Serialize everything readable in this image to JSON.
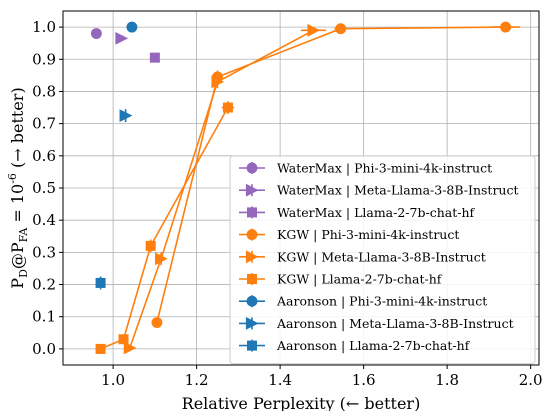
{
  "chart_data": {
    "type": "scatter",
    "xlabel": "Relative Perplexity (← better)",
    "ylabel": "P_D@P_FA = 10^{-6} (→ better)",
    "xlim": [
      0.88,
      2.02
    ],
    "ylim": [
      -0.05,
      1.05
    ],
    "x_ticks": [
      "1.0",
      "1.2",
      "1.4",
      "1.6",
      "1.8",
      "2.0"
    ],
    "y_ticks": [
      "0.0",
      "0.1",
      "0.2",
      "0.3",
      "0.4",
      "0.5",
      "0.6",
      "0.7",
      "0.8",
      "0.9",
      "1.0"
    ],
    "grid": true,
    "legend_position": "lower-right",
    "colors": {
      "WaterMax": "#9467bd",
      "KGW": "#ff7f0e",
      "Aaronson": "#1f77b4"
    },
    "series": [
      {
        "name": "WaterMax | Phi-3-mini-4k-instruct",
        "marker": "circle",
        "color": "#9467bd",
        "connected": false,
        "points": [
          {
            "x": 0.96,
            "y": 0.98,
            "xerr": 0.006,
            "yerr": 0.003
          }
        ]
      },
      {
        "name": "WaterMax | Meta-Llama-3-8B-Instruct",
        "marker": "triangle-right",
        "color": "#9467bd",
        "connected": false,
        "points": [
          {
            "x": 1.02,
            "y": 0.965,
            "xerr": 0.004,
            "yerr": 0.003
          }
        ]
      },
      {
        "name": "WaterMax | Llama-2-7b-chat-hf",
        "marker": "square",
        "color": "#9467bd",
        "connected": false,
        "points": [
          {
            "x": 1.1,
            "y": 0.905,
            "xerr": 0.004,
            "yerr": 0.01
          }
        ]
      },
      {
        "name": "KGW | Phi-3-mini-4k-instruct",
        "marker": "circle",
        "color": "#ff7f0e",
        "connected": true,
        "points": [
          {
            "x": 1.105,
            "y": 0.082,
            "xerr": 0.008,
            "yerr": 0.005
          },
          {
            "x": 1.25,
            "y": 0.845,
            "xerr": 0.01,
            "yerr": 0.02
          },
          {
            "x": 1.545,
            "y": 0.995,
            "xerr": 0.015,
            "yerr": 0.004
          },
          {
            "x": 1.94,
            "y": 1.0,
            "xerr": 0.035,
            "yerr": 0.002
          }
        ]
      },
      {
        "name": "KGW | Meta-Llama-3-8B-Instruct",
        "marker": "triangle-right",
        "color": "#ff7f0e",
        "connected": true,
        "points": [
          {
            "x": 1.04,
            "y": 0.003,
            "xerr": 0.008,
            "yerr": 0.004
          },
          {
            "x": 1.115,
            "y": 0.28,
            "xerr": 0.008,
            "yerr": 0.02
          },
          {
            "x": 1.25,
            "y": 0.83,
            "xerr": 0.012,
            "yerr": 0.02
          },
          {
            "x": 1.48,
            "y": 0.99,
            "xerr": 0.03,
            "yerr": 0.004
          }
        ]
      },
      {
        "name": "KGW | Llama-2-7b-chat-hf",
        "marker": "square",
        "color": "#ff7f0e",
        "connected": true,
        "points": [
          {
            "x": 0.97,
            "y": 0.0,
            "xerr": 0.005,
            "yerr": 0.003
          },
          {
            "x": 1.025,
            "y": 0.03,
            "xerr": 0.006,
            "yerr": 0.006
          },
          {
            "x": 1.09,
            "y": 0.32,
            "xerr": 0.008,
            "yerr": 0.02
          },
          {
            "x": 1.275,
            "y": 0.75,
            "xerr": 0.015,
            "yerr": 0.02
          }
        ]
      },
      {
        "name": "Aaronson | Phi-3-mini-4k-instruct",
        "marker": "circle",
        "color": "#1f77b4",
        "connected": false,
        "points": [
          {
            "x": 1.045,
            "y": 1.0,
            "xerr": 0.012,
            "yerr": 0.003
          }
        ]
      },
      {
        "name": "Aaronson | Meta-Llama-3-8B-Instruct",
        "marker": "triangle-right",
        "color": "#1f77b4",
        "connected": false,
        "points": [
          {
            "x": 1.03,
            "y": 0.725,
            "xerr": 0.006,
            "yerr": 0.02
          }
        ]
      },
      {
        "name": "Aaronson | Llama-2-7b-chat-hf",
        "marker": "square",
        "color": "#1f77b4",
        "connected": false,
        "points": [
          {
            "x": 0.97,
            "y": 0.205,
            "xerr": 0.005,
            "yerr": 0.02
          }
        ]
      }
    ]
  }
}
